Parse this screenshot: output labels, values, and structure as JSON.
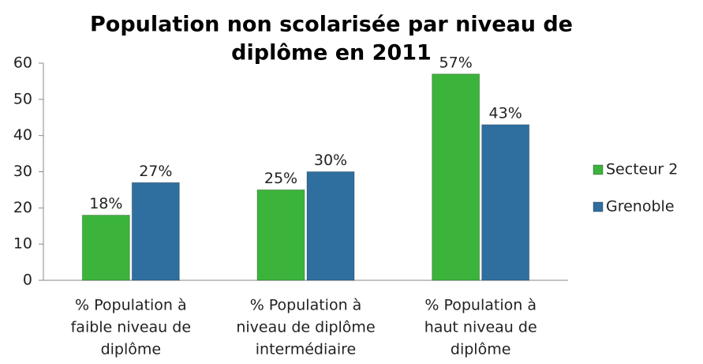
{
  "chart_data": {
    "type": "bar",
    "title": [
      "Population non scolarisée par niveau de",
      "diplôme en 2011"
    ],
    "categories": [
      [
        "% Population à",
        "faible niveau de",
        "diplôme"
      ],
      [
        "% Population à",
        "niveau de diplôme",
        "intermédiaire"
      ],
      [
        "% Population à",
        "haut niveau de",
        "diplôme"
      ]
    ],
    "series": [
      {
        "name": "Secteur 2",
        "color": "#3cb43c",
        "values": [
          18,
          25,
          57
        ],
        "value_labels": [
          "18%",
          "25%",
          "57%"
        ]
      },
      {
        "name": "Grenoble",
        "color": "#2f6f9f",
        "values": [
          27,
          30,
          43
        ],
        "value_labels": [
          "27%",
          "30%",
          "43%"
        ]
      }
    ],
    "ylim": [
      0,
      60
    ],
    "yticks": [
      0,
      10,
      20,
      30,
      40,
      50,
      60
    ],
    "legend": "right"
  }
}
